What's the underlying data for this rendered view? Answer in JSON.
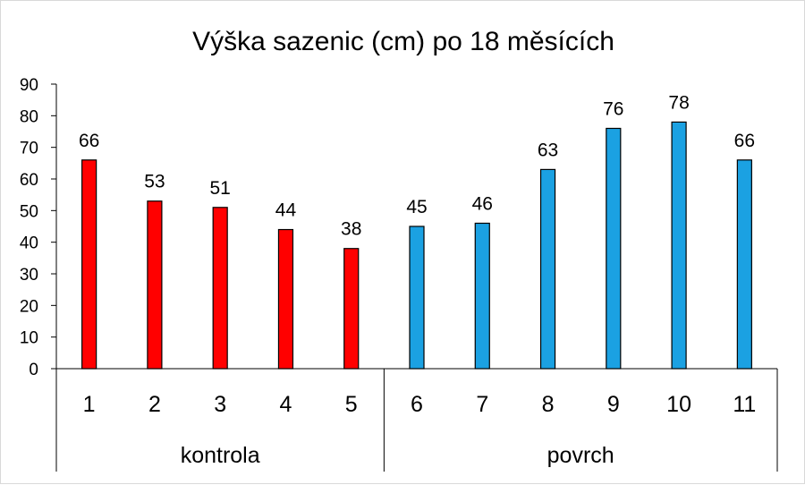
{
  "chart_data": {
    "type": "bar",
    "title": "Výška sazenic (cm) po 18 měsících",
    "xlabel": "",
    "ylabel": "",
    "ylim": [
      0,
      90
    ],
    "yticks": [
      0,
      10,
      20,
      30,
      40,
      50,
      60,
      70,
      80,
      90
    ],
    "categories": [
      "1",
      "2",
      "3",
      "4",
      "5",
      "6",
      "7",
      "8",
      "9",
      "10",
      "11"
    ],
    "values": [
      66,
      53,
      51,
      44,
      38,
      45,
      46,
      63,
      76,
      78,
      66
    ],
    "groups": [
      {
        "label": "kontrola",
        "categories": [
          "1",
          "2",
          "3",
          "4",
          "5"
        ],
        "color": "#ff0000"
      },
      {
        "label": "povrch",
        "categories": [
          "6",
          "7",
          "8",
          "9",
          "10",
          "11"
        ],
        "color": "#1ba1e2"
      }
    ],
    "bar_border_color": "#000000",
    "data_labels": true,
    "grid": false,
    "legend": "none"
  }
}
